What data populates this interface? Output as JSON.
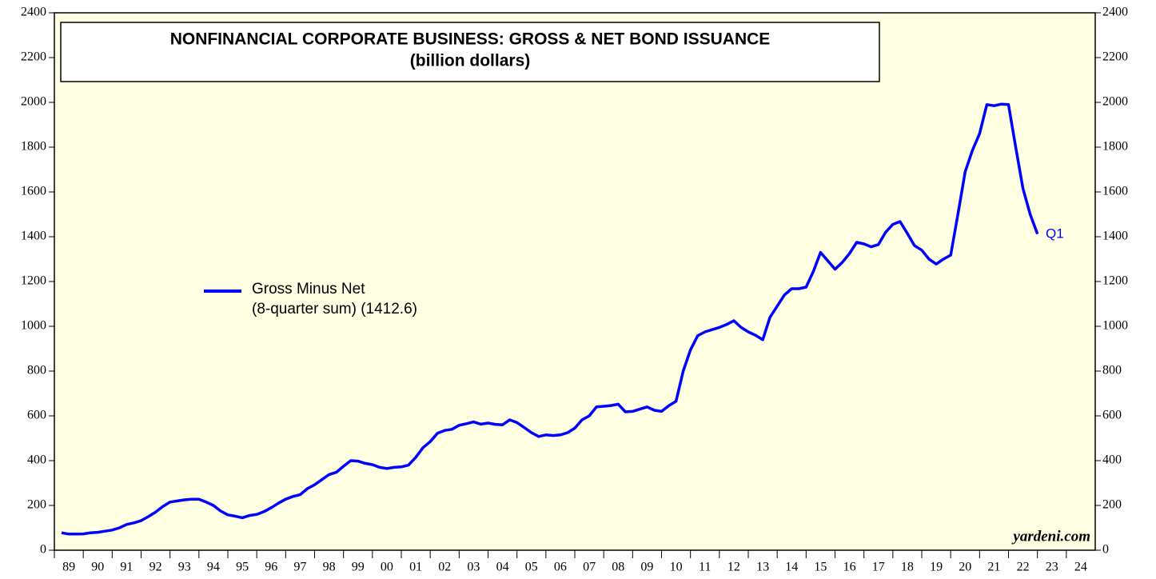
{
  "chart_data": {
    "type": "line",
    "title": "NONFINANCIAL CORPORATE BUSINESS: GROSS & NET BOND ISSUANCE",
    "subtitle": "(billion dollars)",
    "legend_note": "(8-quarter sum) (1412.6)",
    "end_label": "Q1",
    "source": "yardeni.com",
    "xlim": [
      1989,
      2025
    ],
    "xticks": [
      {
        "value": 1989,
        "label": "89"
      },
      {
        "value": 1990,
        "label": "90"
      },
      {
        "value": 1991,
        "label": "91"
      },
      {
        "value": 1992,
        "label": "92"
      },
      {
        "value": 1993,
        "label": "93"
      },
      {
        "value": 1994,
        "label": "94"
      },
      {
        "value": 1995,
        "label": "95"
      },
      {
        "value": 1996,
        "label": "96"
      },
      {
        "value": 1997,
        "label": "97"
      },
      {
        "value": 1998,
        "label": "98"
      },
      {
        "value": 1999,
        "label": "99"
      },
      {
        "value": 2000,
        "label": "00"
      },
      {
        "value": 2001,
        "label": "01"
      },
      {
        "value": 2002,
        "label": "02"
      },
      {
        "value": 2003,
        "label": "03"
      },
      {
        "value": 2004,
        "label": "04"
      },
      {
        "value": 2005,
        "label": "05"
      },
      {
        "value": 2006,
        "label": "06"
      },
      {
        "value": 2007,
        "label": "07"
      },
      {
        "value": 2008,
        "label": "08"
      },
      {
        "value": 2009,
        "label": "09"
      },
      {
        "value": 2010,
        "label": "10"
      },
      {
        "value": 2011,
        "label": "11"
      },
      {
        "value": 2012,
        "label": "12"
      },
      {
        "value": 2013,
        "label": "13"
      },
      {
        "value": 2014,
        "label": "14"
      },
      {
        "value": 2015,
        "label": "15"
      },
      {
        "value": 2016,
        "label": "16"
      },
      {
        "value": 2017,
        "label": "17"
      },
      {
        "value": 2018,
        "label": "18"
      },
      {
        "value": 2019,
        "label": "19"
      },
      {
        "value": 2020,
        "label": "20"
      },
      {
        "value": 2021,
        "label": "21"
      },
      {
        "value": 2022,
        "label": "22"
      },
      {
        "value": 2023,
        "label": "23"
      },
      {
        "value": 2024,
        "label": "24"
      }
    ],
    "ylim": [
      0,
      2400
    ],
    "yticks": [
      0,
      200,
      400,
      600,
      800,
      1000,
      1200,
      1400,
      1600,
      1800,
      2000,
      2200,
      2400
    ],
    "background": "#ffffe3",
    "x": [
      1989.25,
      1989.5,
      1989.75,
      1990,
      1990.25,
      1990.5,
      1990.75,
      1991,
      1991.25,
      1991.5,
      1991.75,
      1992,
      1992.25,
      1992.5,
      1992.75,
      1993,
      1993.25,
      1993.5,
      1993.75,
      1994,
      1994.25,
      1994.5,
      1994.75,
      1995,
      1995.25,
      1995.5,
      1995.75,
      1996,
      1996.25,
      1996.5,
      1996.75,
      1997,
      1997.25,
      1997.5,
      1997.75,
      1998,
      1998.25,
      1998.5,
      1998.75,
      1999,
      1999.25,
      1999.5,
      1999.75,
      2000,
      2000.25,
      2000.5,
      2000.75,
      2001,
      2001.25,
      2001.5,
      2001.75,
      2002,
      2002.25,
      2002.5,
      2002.75,
      2003,
      2003.25,
      2003.5,
      2003.75,
      2004,
      2004.25,
      2004.5,
      2004.75,
      2005,
      2005.25,
      2005.5,
      2005.75,
      2006,
      2006.25,
      2006.5,
      2006.75,
      2007,
      2007.25,
      2007.5,
      2007.75,
      2008,
      2008.25,
      2008.5,
      2008.75,
      2009,
      2009.25,
      2009.5,
      2009.75,
      2010,
      2010.25,
      2010.5,
      2010.75,
      2011,
      2011.25,
      2011.5,
      2011.75,
      2012,
      2012.25,
      2012.5,
      2012.75,
      2013,
      2013.25,
      2013.5,
      2013.75,
      2014,
      2014.25,
      2014.5,
      2014.75,
      2015,
      2015.25,
      2015.5,
      2015.75,
      2016,
      2016.25,
      2016.5,
      2016.75,
      2017,
      2017.25,
      2017.5,
      2017.75,
      2018,
      2018.25,
      2018.5,
      2018.75,
      2019,
      2019.25,
      2019.5,
      2019.75,
      2020,
      2020.25,
      2020.5,
      2020.75,
      2021,
      2021.25,
      2021.5,
      2021.75,
      2022,
      2022.25,
      2022.5,
      2022.75,
      2023
    ],
    "series": [
      {
        "name": "Gross Minus Net",
        "color": "#0000ff",
        "values": [
          78,
          72,
          72,
          73,
          78,
          80,
          85,
          90,
          100,
          115,
          122,
          132,
          150,
          170,
          195,
          215,
          220,
          225,
          228,
          228,
          215,
          200,
          175,
          158,
          152,
          145,
          155,
          160,
          172,
          190,
          210,
          228,
          240,
          248,
          275,
          292,
          315,
          338,
          348,
          375,
          400,
          398,
          388,
          382,
          370,
          365,
          370,
          372,
          380,
          415,
          458,
          485,
          522,
          535,
          540,
          558,
          565,
          573,
          563,
          568,
          562,
          560,
          582,
          570,
          548,
          525,
          508,
          515,
          512,
          515,
          525,
          545,
          582,
          600,
          640,
          643,
          646,
          652,
          618,
          620,
          630,
          640,
          625,
          620,
          645,
          665,
          800,
          895,
          958,
          975,
          985,
          995,
          1008,
          1025,
          995,
          975,
          960,
          940,
          1040,
          1090,
          1140,
          1168,
          1168,
          1175,
          1245,
          1330,
          1292,
          1255,
          1285,
          1325,
          1375,
          1368,
          1355,
          1365,
          1420,
          1455,
          1468,
          1415,
          1360,
          1340,
          1300,
          1278,
          1300,
          1318,
          1500,
          1690,
          1785,
          1860,
          1990,
          1985,
          1992,
          1990,
          1800,
          1615,
          1500,
          1412.6
        ]
      }
    ]
  }
}
